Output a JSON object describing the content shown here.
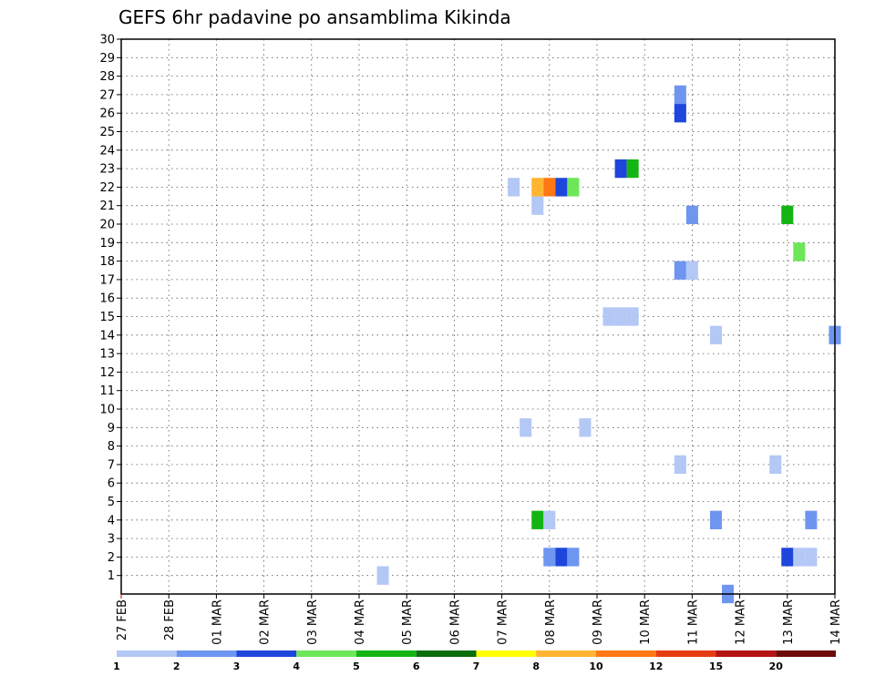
{
  "chart_data": {
    "type": "heatmap",
    "title": "GEFS 6hr padavine po ansamblima Kikinda",
    "y_ticks": [
      "1",
      "2",
      "3",
      "4",
      "5",
      "6",
      "7",
      "8",
      "9",
      "10",
      "11",
      "12",
      "13",
      "14",
      "15",
      "16",
      "17",
      "18",
      "19",
      "20",
      "21",
      "22",
      "23",
      "24",
      "25",
      "26",
      "27",
      "28",
      "29",
      "30"
    ],
    "x_ticks": [
      "27 FEB",
      "28 FEB",
      "01 MAR",
      "02 MAR",
      "03 MAR",
      "04 MAR",
      "05 MAR",
      "06 MAR",
      "07 MAR",
      "08 MAR",
      "09 MAR",
      "10 MAR",
      "11 MAR",
      "12 MAR",
      "13 MAR",
      "14 MAR"
    ],
    "x_range_days": [
      0,
      15
    ],
    "y_range": [
      0,
      30
    ],
    "grid": true,
    "legend": {
      "placement": "bottom",
      "colors": [
        "#b4c8f5",
        "#6e96f0",
        "#1e46dc",
        "#6ee65a",
        "#14b414",
        "#0a6e0a",
        "#ffff00",
        "#ffb432",
        "#ff7814",
        "#e63c14",
        "#b41414",
        "#6e0a0a"
      ],
      "labels": [
        "1",
        "2",
        "3",
        "4",
        "5",
        "6",
        "7",
        "8",
        "10",
        "12",
        "15",
        "20"
      ]
    },
    "cells": [
      {
        "member": 1,
        "day": 5.5,
        "color": "#b4c8f5"
      },
      {
        "member": 2,
        "day": 9.0,
        "color": "#6e96f0"
      },
      {
        "member": 2,
        "day": 9.25,
        "color": "#1e46dc"
      },
      {
        "member": 2,
        "day": 9.5,
        "color": "#6e96f0"
      },
      {
        "member": 2,
        "day": 14.0,
        "color": "#1e46dc"
      },
      {
        "member": 2,
        "day": 14.25,
        "color": "#b4c8f5"
      },
      {
        "member": 2,
        "day": 14.5,
        "color": "#b4c8f5"
      },
      {
        "member": 4,
        "day": 8.75,
        "color": "#14b414"
      },
      {
        "member": 4,
        "day": 9.0,
        "color": "#b4c8f5"
      },
      {
        "member": 4,
        "day": 12.5,
        "color": "#6e96f0"
      },
      {
        "member": 4,
        "day": 14.5,
        "color": "#6e96f0"
      },
      {
        "member": 7,
        "day": 11.75,
        "color": "#b4c8f5"
      },
      {
        "member": 7,
        "day": 13.75,
        "color": "#b4c8f5"
      },
      {
        "member": 9,
        "day": 8.5,
        "color": "#b4c8f5"
      },
      {
        "member": 9,
        "day": 9.75,
        "color": "#b4c8f5"
      },
      {
        "member": 14,
        "day": 12.5,
        "color": "#b4c8f5"
      },
      {
        "member": 14,
        "day": 15.0,
        "color": "#6e96f0"
      },
      {
        "member": 15,
        "day": 10.25,
        "color": "#b4c8f5"
      },
      {
        "member": 15,
        "day": 10.5,
        "color": "#b4c8f5"
      },
      {
        "member": 15,
        "day": 10.75,
        "color": "#b4c8f5"
      },
      {
        "member": 17.5,
        "day": 11.75,
        "color": "#6e96f0"
      },
      {
        "member": 17.5,
        "day": 12.0,
        "color": "#b4c8f5"
      },
      {
        "member": 18.5,
        "day": 14.25,
        "color": "#6ee65a"
      },
      {
        "member": 20.5,
        "day": 12.0,
        "color": "#6e96f0"
      },
      {
        "member": 20.5,
        "day": 14.0,
        "color": "#14b414"
      },
      {
        "member": 21,
        "day": 8.75,
        "color": "#b4c8f5"
      },
      {
        "member": 22,
        "day": 8.25,
        "color": "#b4c8f5"
      },
      {
        "member": 22,
        "day": 8.75,
        "color": "#ffb432"
      },
      {
        "member": 22,
        "day": 9.0,
        "color": "#ff7814"
      },
      {
        "member": 22,
        "day": 9.25,
        "color": "#1e46dc"
      },
      {
        "member": 22,
        "day": 9.5,
        "color": "#6ee65a"
      },
      {
        "member": 23,
        "day": 10.5,
        "color": "#1e46dc"
      },
      {
        "member": 23,
        "day": 10.75,
        "color": "#14b414"
      },
      {
        "member": 26,
        "day": 11.75,
        "color": "#1e46dc"
      },
      {
        "member": 27,
        "day": 11.75,
        "color": "#6e96f0"
      },
      {
        "member": 0,
        "day": 12.75,
        "color": "#6e96f0"
      }
    ]
  }
}
